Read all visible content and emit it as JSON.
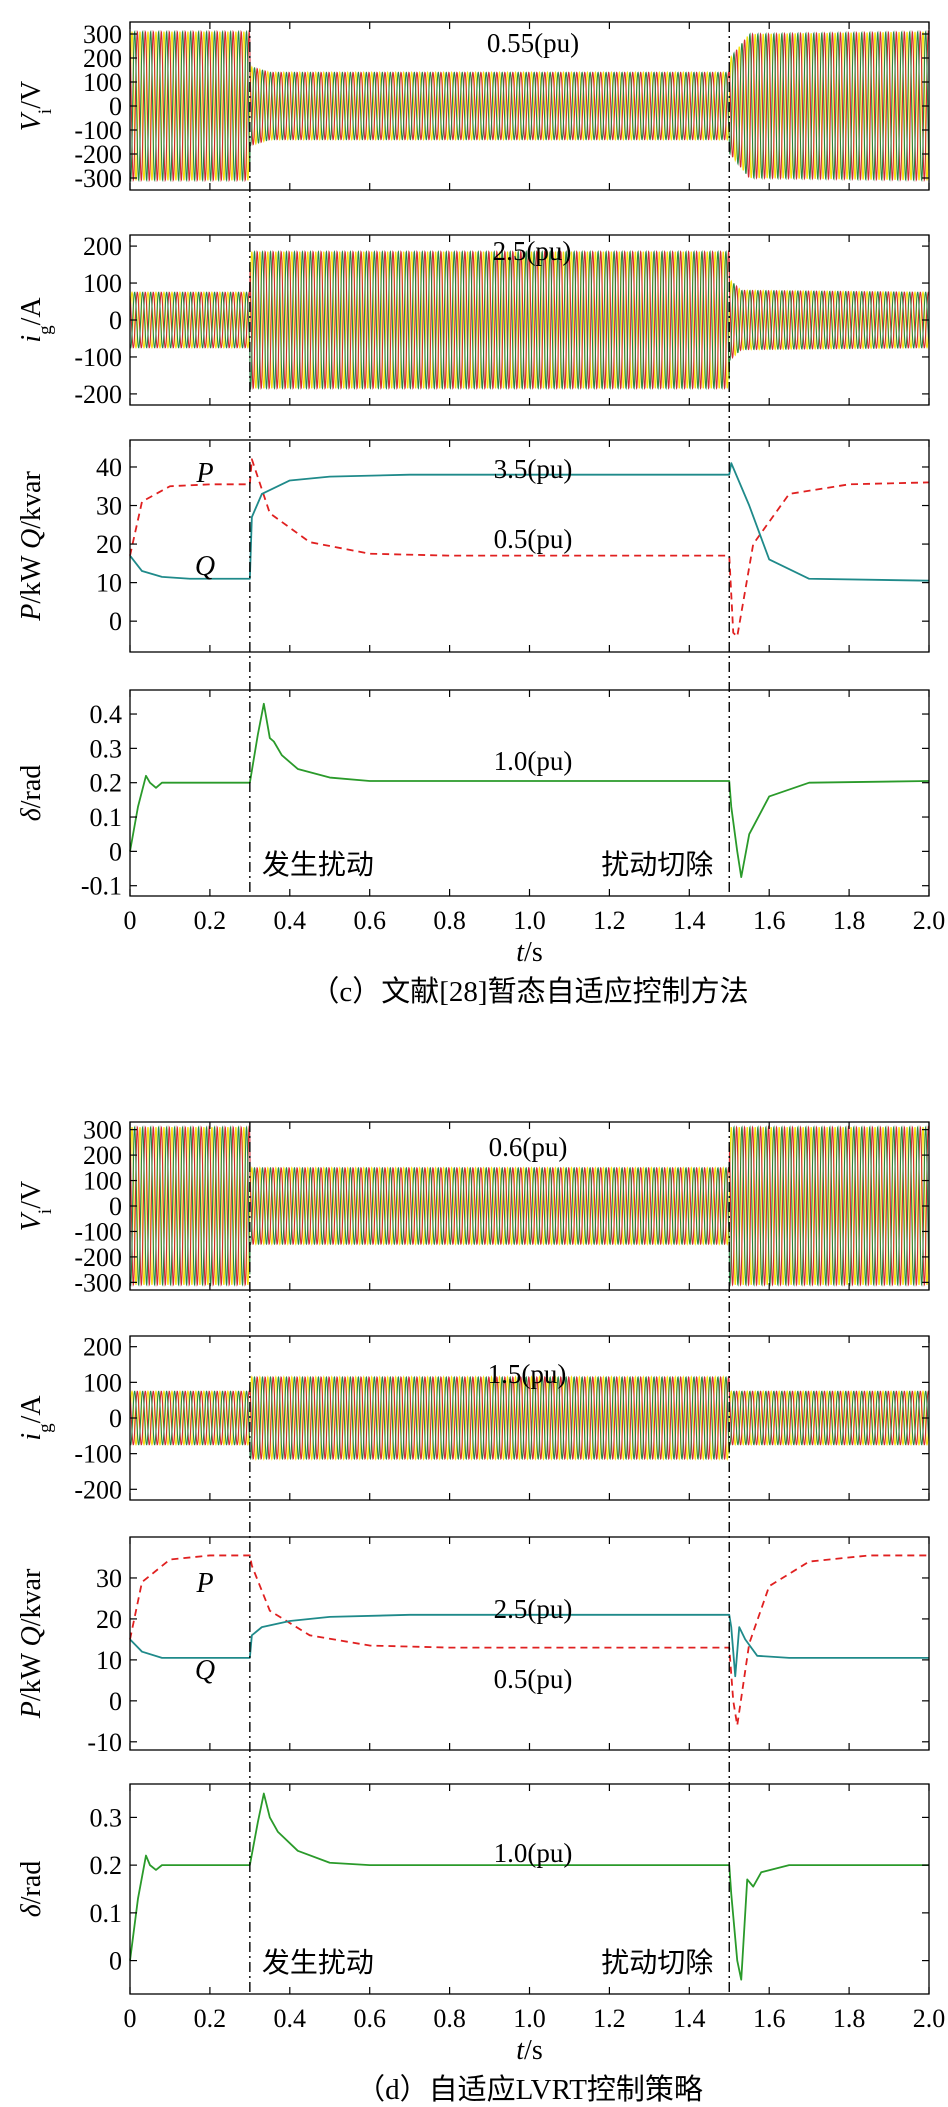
{
  "figures": [
    {
      "caption": "（c）文献[28]暂态自适应控制方法",
      "x_axis_label": "t/s",
      "x_ticks": [
        "0",
        "0.2",
        "0.4",
        "0.6",
        "0.8",
        "1.0",
        "1.2",
        "1.4",
        "1.6",
        "1.8",
        "2.0"
      ],
      "markers": {
        "disturb": "发生扰动",
        "clear": "扰动切除"
      }
    },
    {
      "caption": "（d）自适应LVRT控制策略",
      "x_axis_label": "t/s",
      "x_ticks": [
        "0",
        "0.2",
        "0.4",
        "0.6",
        "0.8",
        "1.0",
        "1.2",
        "1.4",
        "1.6",
        "1.8",
        "2.0"
      ],
      "markers": {
        "disturb": "发生扰动",
        "clear": "扰动切除"
      }
    }
  ],
  "colors": {
    "wave_yellow": "#f5e000",
    "wave_red": "#d0202a",
    "wave_green": "#1f7f3a",
    "P_dashed_red": "#e02020",
    "Q_teal": "#1f8a8a",
    "delta_green": "#2a9a2a",
    "event_line": "#000000"
  },
  "chart_data": [
    {
      "type": "line",
      "panel": "c-Vi",
      "ylabel": "Vi/V",
      "ylim": [
        -350,
        350
      ],
      "yticks": [
        "300",
        "200",
        "100",
        "0",
        "-100",
        "-200",
        "-300"
      ],
      "xlim": [
        0,
        2.0
      ],
      "annotations": [
        "0.55(pu)"
      ],
      "series": [
        {
          "x": [
            0,
            0.3,
            0.3,
            0.35,
            1.5,
            1.5,
            1.55,
            2.0
          ],
          "amplitude": [
            310,
            310,
            165,
            140,
            140,
            195,
            300,
            310
          ]
        }
      ]
    },
    {
      "type": "line",
      "panel": "c-ig",
      "ylabel": "ig/A",
      "ylim": [
        -230,
        230
      ],
      "yticks": [
        "200",
        "100",
        "0",
        "-100",
        "-200"
      ],
      "xlim": [
        0,
        2.0
      ],
      "annotations": [
        "2.5(pu)"
      ],
      "series": [
        {
          "x": [
            0,
            0.3,
            0.3,
            1.5,
            1.5,
            1.53,
            2.0
          ],
          "amplitude": [
            75,
            75,
            185,
            185,
            110,
            80,
            75
          ]
        }
      ]
    },
    {
      "type": "line",
      "panel": "c-PQ",
      "ylabel": "P/kW  Q/kvar",
      "ylim": [
        -8,
        47
      ],
      "yticks": [
        "40",
        "30",
        "20",
        "10",
        "0"
      ],
      "xlim": [
        0,
        2.0
      ],
      "annotations": [
        "P",
        "Q",
        "3.5(pu)",
        "0.5(pu)"
      ],
      "series": [
        {
          "name": "P",
          "style": "dashed",
          "x": [
            0,
            0.03,
            0.1,
            0.2,
            0.3,
            0.305,
            0.35,
            0.45,
            0.6,
            0.8,
            1.0,
            1.5,
            1.51,
            1.52,
            1.56,
            1.65,
            1.8,
            2.0
          ],
          "values": [
            17,
            31,
            35,
            35.5,
            35.5,
            42,
            28,
            20.5,
            17.5,
            17,
            17,
            17,
            -3,
            -4,
            20,
            33,
            35.5,
            36
          ]
        },
        {
          "name": "Q",
          "style": "solid",
          "x": [
            0,
            0.03,
            0.08,
            0.15,
            0.3,
            0.305,
            0.33,
            0.4,
            0.5,
            0.7,
            1.0,
            1.5,
            1.505,
            1.55,
            1.6,
            1.7,
            2.0
          ],
          "values": [
            17,
            13,
            11.5,
            11,
            11,
            27,
            33,
            36.5,
            37.5,
            38,
            38,
            38,
            41,
            30,
            16,
            11,
            10.5
          ]
        }
      ]
    },
    {
      "type": "line",
      "panel": "c-delta",
      "ylabel": "δ/rad",
      "ylim": [
        -0.13,
        0.47
      ],
      "yticks": [
        "0.4",
        "0.3",
        "0.2",
        "0.1",
        "0",
        "-0.1"
      ],
      "xlim": [
        0,
        2.0
      ],
      "annotations": [
        "1.0(pu)"
      ],
      "series": [
        {
          "x": [
            0,
            0.02,
            0.04,
            0.05,
            0.065,
            0.08,
            0.1,
            0.3,
            0.3,
            0.32,
            0.335,
            0.35,
            0.36,
            0.38,
            0.42,
            0.5,
            0.6,
            1.5,
            1.505,
            1.52,
            1.53,
            1.55,
            1.6,
            1.7,
            2.0
          ],
          "values": [
            0,
            0.13,
            0.22,
            0.2,
            0.185,
            0.2,
            0.2,
            0.2,
            0.2,
            0.34,
            0.43,
            0.33,
            0.32,
            0.28,
            0.24,
            0.215,
            0.205,
            0.205,
            0.13,
            0.0,
            -0.075,
            0.05,
            0.16,
            0.2,
            0.205
          ]
        }
      ]
    },
    {
      "type": "line",
      "panel": "d-Vi",
      "ylabel": "Vi/V",
      "ylim": [
        -330,
        330
      ],
      "yticks": [
        "300",
        "200",
        "100",
        "0",
        "-100",
        "-200",
        "-300"
      ],
      "xlim": [
        0,
        2.0
      ],
      "annotations": [
        "0.6(pu)"
      ],
      "series": [
        {
          "x": [
            0,
            0.3,
            0.3,
            1.5,
            1.5,
            2.0
          ],
          "amplitude": [
            310,
            310,
            150,
            150,
            310,
            310
          ]
        }
      ]
    },
    {
      "type": "line",
      "panel": "d-ig",
      "ylabel": "ig/A",
      "ylim": [
        -230,
        230
      ],
      "yticks": [
        "200",
        "100",
        "0",
        "-100",
        "-200"
      ],
      "xlim": [
        0,
        2.0
      ],
      "annotations": [
        "1.5(pu)"
      ],
      "series": [
        {
          "x": [
            0,
            0.3,
            0.3,
            1.5,
            1.5,
            2.0
          ],
          "amplitude": [
            75,
            75,
            115,
            115,
            75,
            75
          ]
        }
      ]
    },
    {
      "type": "line",
      "panel": "d-PQ",
      "ylabel": "P/kW  Q/kvar",
      "ylim": [
        -12,
        40
      ],
      "yticks": [
        "30",
        "20",
        "10",
        "0",
        "-10"
      ],
      "xlim": [
        0,
        2.0
      ],
      "annotations": [
        "P",
        "Q",
        "2.5(pu)",
        "0.5(pu)"
      ],
      "series": [
        {
          "name": "P",
          "style": "dashed",
          "x": [
            0,
            0.03,
            0.1,
            0.2,
            0.3,
            0.305,
            0.35,
            0.45,
            0.6,
            0.8,
            1.5,
            1.51,
            1.52,
            1.55,
            1.6,
            1.7,
            1.85,
            2.0
          ],
          "values": [
            15,
            29,
            34.5,
            35.5,
            35.5,
            33,
            22,
            16,
            13.5,
            13,
            13,
            0,
            -6,
            14,
            28,
            34,
            35.5,
            35.5
          ]
        },
        {
          "name": "Q",
          "style": "solid",
          "x": [
            0,
            0.03,
            0.08,
            0.15,
            0.3,
            0.305,
            0.33,
            0.4,
            0.5,
            0.7,
            1.5,
            1.505,
            1.515,
            1.525,
            1.54,
            1.57,
            1.65,
            2.0
          ],
          "values": [
            15,
            12,
            10.5,
            10.5,
            10.5,
            16,
            18,
            19.5,
            20.5,
            21,
            21,
            18,
            6,
            18,
            15,
            11,
            10.5,
            10.5
          ]
        }
      ]
    },
    {
      "type": "line",
      "panel": "d-delta",
      "ylabel": "δ/rad",
      "ylim": [
        -0.07,
        0.37
      ],
      "yticks": [
        "0.3",
        "0.2",
        "0.1",
        "0"
      ],
      "xlim": [
        0,
        2.0
      ],
      "annotations": [
        "1.0(pu)"
      ],
      "series": [
        {
          "x": [
            0,
            0.02,
            0.04,
            0.05,
            0.065,
            0.08,
            0.1,
            0.3,
            0.3,
            0.32,
            0.335,
            0.35,
            0.37,
            0.42,
            0.5,
            0.6,
            1.5,
            1.505,
            1.52,
            1.53,
            1.545,
            1.56,
            1.58,
            1.65,
            2.0
          ],
          "values": [
            0,
            0.13,
            0.22,
            0.2,
            0.19,
            0.2,
            0.2,
            0.2,
            0.2,
            0.29,
            0.35,
            0.3,
            0.27,
            0.23,
            0.205,
            0.2,
            0.2,
            0.14,
            0.0,
            -0.04,
            0.17,
            0.155,
            0.185,
            0.2,
            0.2
          ]
        }
      ]
    }
  ]
}
